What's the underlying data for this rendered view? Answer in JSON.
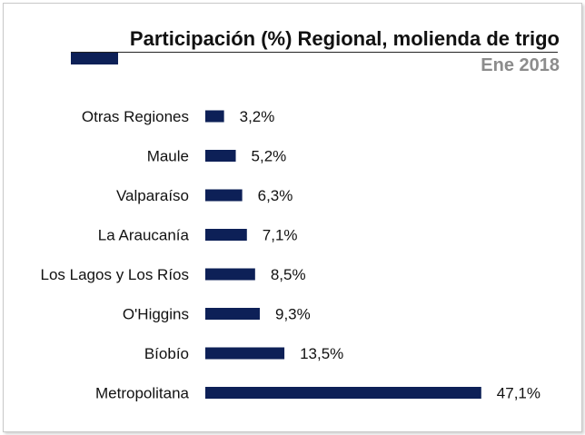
{
  "title": "Participación (%) Regional, molienda de trigo",
  "subtitle": "Ene 2018",
  "colors": {
    "bar": "#0d2057",
    "accent": "#0d2057",
    "subtitle": "#8c8c8c"
  },
  "chart_data": {
    "type": "bar",
    "orientation": "horizontal",
    "title": "Participación (%) Regional, molienda de trigo",
    "subtitle": "Ene 2018",
    "categories": [
      "Otras Regiones",
      "Maule",
      "Valparaíso",
      "La Araucanía",
      "Los Lagos y Los Ríos",
      "O'Higgins",
      "Bíobío",
      "Metropolitana"
    ],
    "values": [
      3.2,
      5.2,
      6.3,
      7.1,
      8.5,
      9.3,
      13.5,
      47.1
    ],
    "value_labels": [
      "3,2%",
      "5,2%",
      "6,3%",
      "7,1%",
      "8,5%",
      "9,3%",
      "13,5%",
      "47,1%"
    ],
    "xlim": [
      0,
      50
    ],
    "grid": false,
    "legend": "none",
    "axes_visible": false
  }
}
